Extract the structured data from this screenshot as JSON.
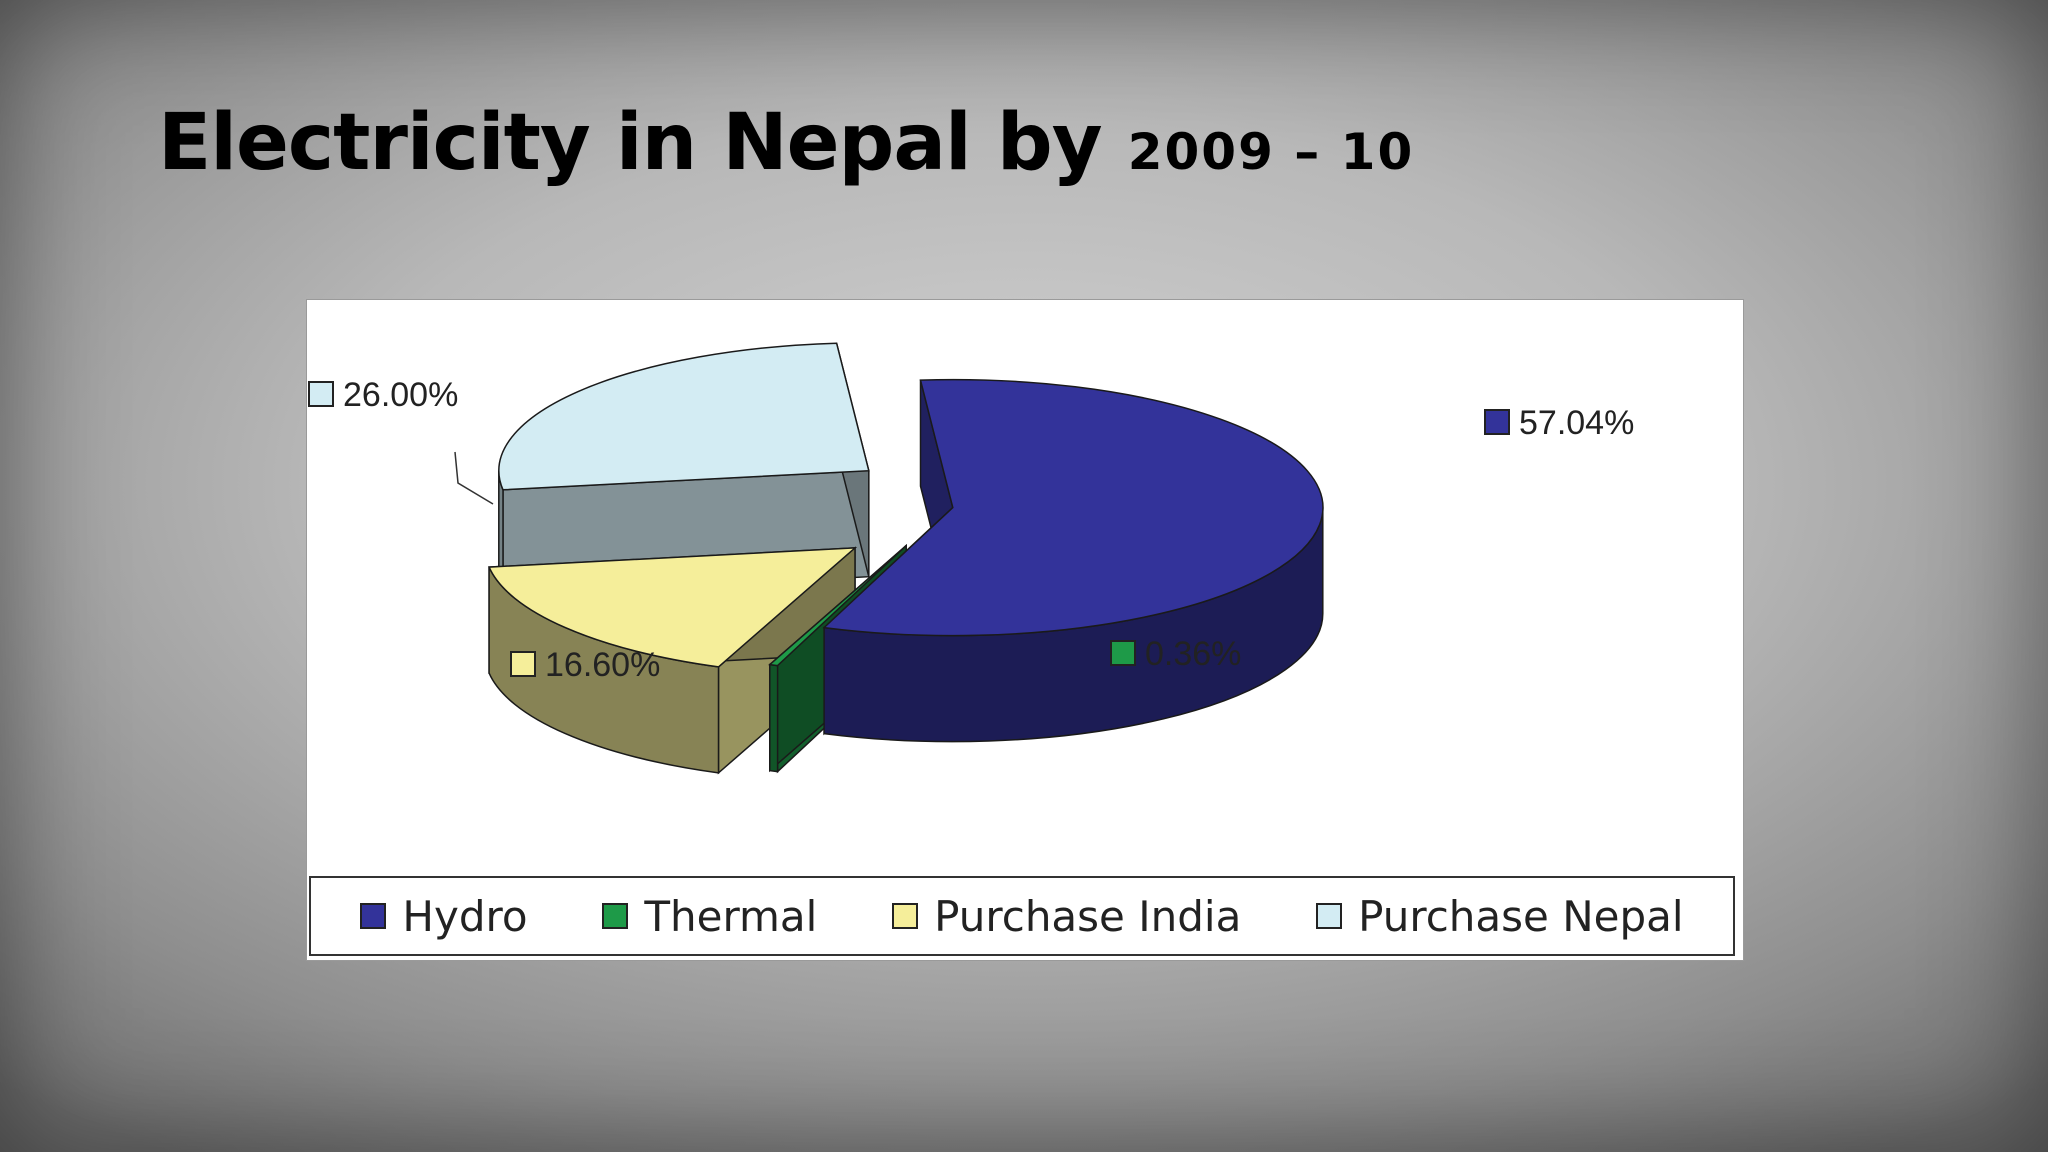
{
  "slide": {
    "title_main": "Electricity in Nepal by ",
    "title_year": "2009 – 10"
  },
  "chart_data": {
    "type": "pie",
    "style": "3d-exploded",
    "legend_position": "bottom",
    "categories": [
      "Hydro",
      "Thermal",
      "Purchase India",
      "Purchase Nepal"
    ],
    "values": [
      57.04,
      0.36,
      16.6,
      26.0
    ],
    "labels": [
      "57.04%",
      "0.36%",
      "16.60%",
      "26.00%"
    ],
    "colors": [
      "#33339a",
      "#1e9a48",
      "#f5ee9a",
      "#d3ecf3"
    ]
  }
}
